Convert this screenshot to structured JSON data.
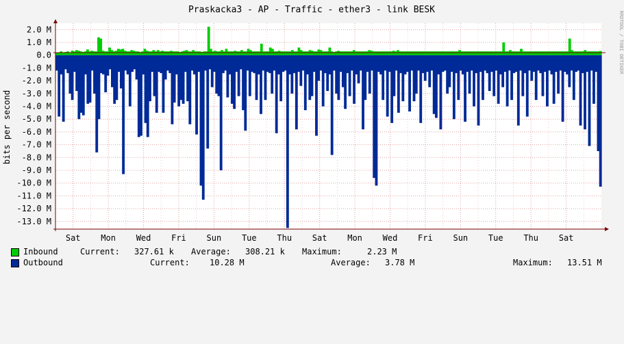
{
  "chart_data": {
    "type": "area",
    "title": "Praskacka3 - AP - Traffic - ether3 - link BESK",
    "ylabel": "bits per second",
    "xlabel": "",
    "credit": "RRDTOOL / TOBI OETIKER",
    "ylim": [
      -13.6,
      2.5
    ],
    "yticks": [
      "2.0 M",
      "1.0 M",
      "0.0",
      "-1.0 M",
      "-2.0 M",
      "-3.0 M",
      "-4.0 M",
      "-5.0 M",
      "-6.0 M",
      "-7.0 M",
      "-8.0 M",
      "-9.0 M",
      "-10.0 M",
      "-11.0 M",
      "-12.0 M",
      "-13.0 M"
    ],
    "ytick_values": [
      2,
      1,
      0,
      -1,
      -2,
      -3,
      -4,
      -5,
      -6,
      -7,
      -8,
      -9,
      -10,
      -11,
      -12,
      -13
    ],
    "xticks": [
      "Sat",
      "Mon",
      "Wed",
      "Fri",
      "Sun",
      "Tue",
      "Thu",
      "Sat",
      "Mon",
      "Wed",
      "Fri",
      "Sun",
      "Tue",
      "Thu",
      "Sat"
    ],
    "xtick_positions": [
      0.5,
      1.5,
      2.5,
      3.5,
      4.5,
      5.5,
      6.5,
      7.5,
      8.5,
      9.5,
      10.5,
      11.5,
      12.5,
      13.5,
      14.5
    ],
    "xlim": [
      0,
      15.5
    ],
    "grid": true,
    "series": [
      {
        "name": "Inbound",
        "color": "#00cc00",
        "values": [
          0.2,
          0.22,
          0.3,
          0.18,
          0.25,
          0.3,
          0.2,
          0.35,
          0.3,
          0.4,
          0.35,
          0.3,
          0.25,
          0.3,
          0.45,
          0.3,
          0.35,
          0.3,
          0.3,
          1.4,
          1.3,
          0.35,
          0.3,
          0.3,
          0.6,
          0.4,
          0.3,
          0.35,
          0.5,
          0.45,
          0.5,
          0.35,
          0.3,
          0.3,
          0.4,
          0.35,
          0.3,
          0.3,
          0.25,
          0.3,
          0.5,
          0.35,
          0.3,
          0.3,
          0.4,
          0.3,
          0.4,
          0.3,
          0.35,
          0.3,
          0.3,
          0.3,
          0.35,
          0.3,
          0.3,
          0.3,
          0.25,
          0.3,
          0.35,
          0.4,
          0.3,
          0.3,
          0.4,
          0.3,
          0.3,
          0.3,
          0.25,
          0.3,
          0.3,
          2.23,
          0.5,
          0.3,
          0.35,
          0.3,
          0.3,
          0.4,
          0.3,
          0.5,
          0.3,
          0.3,
          0.3,
          0.35,
          0.3,
          0.3,
          0.4,
          0.3,
          0.3,
          0.5,
          0.4,
          0.3,
          0.3,
          0.3,
          0.3,
          0.9,
          0.3,
          0.3,
          0.3,
          0.6,
          0.5,
          0.3,
          0.3,
          0.35,
          0.3,
          0.3,
          0.3,
          0.3,
          0.3,
          0.4,
          0.3,
          0.3,
          0.6,
          0.4,
          0.3,
          0.3,
          0.3,
          0.4,
          0.35,
          0.3,
          0.3,
          0.45,
          0.4,
          0.3,
          0.3,
          0.3,
          0.6,
          0.3,
          0.25,
          0.3,
          0.35,
          0.3,
          0.3,
          0.3,
          0.3,
          0.3,
          0.3,
          0.4,
          0.3,
          0.3,
          0.3,
          0.3,
          0.3,
          0.3,
          0.4,
          0.35,
          0.3,
          0.3,
          0.3,
          0.3,
          0.3,
          0.3,
          0.3,
          0.3,
          0.3,
          0.35,
          0.3,
          0.4,
          0.3,
          0.3,
          0.3,
          0.3,
          0.3,
          0.3,
          0.3,
          0.3,
          0.3,
          0.3,
          0.3,
          0.3,
          0.3,
          0.3,
          0.3,
          0.3,
          0.3,
          0.3,
          0.3,
          0.3,
          0.3,
          0.3,
          0.3,
          0.3,
          0.3,
          0.3,
          0.3,
          0.4,
          0.3,
          0.3,
          0.3,
          0.3,
          0.3,
          0.3,
          0.3,
          0.3,
          0.3,
          0.3,
          0.3,
          0.3,
          0.3,
          0.3,
          0.3,
          0.3,
          0.3,
          0.3,
          0.3,
          1.0,
          0.3,
          0.3,
          0.4,
          0.3,
          0.3,
          0.3,
          0.3,
          0.5,
          0.3,
          0.3,
          0.3,
          0.3,
          0.3,
          0.3,
          0.3,
          0.3,
          0.3,
          0.3,
          0.3,
          0.3,
          0.3,
          0.3,
          0.3,
          0.3,
          0.3,
          0.3,
          0.3,
          0.3,
          0.3,
          1.3,
          0.4,
          0.3,
          0.3,
          0.3,
          0.3,
          0.3,
          0.4,
          0.3,
          0.3,
          0.3,
          0.3,
          0.3,
          0.3,
          0.33
        ]
      },
      {
        "name": "Outbound",
        "color": "#002a97",
        "values": [
          -1.2,
          -4.8,
          -1.5,
          -5.2,
          -1.1,
          -1.4,
          -3.0,
          -3.5,
          -1.3,
          -2.8,
          -5.0,
          -4.5,
          -4.7,
          -1.5,
          -3.8,
          -3.7,
          -1.2,
          -3.0,
          -7.6,
          -5.0,
          -1.4,
          -1.5,
          -2.9,
          -1.6,
          -1.1,
          -2.5,
          -3.8,
          -3.5,
          -1.3,
          -2.6,
          -9.3,
          -1.2,
          -1.5,
          -4.0,
          -1.3,
          -1.1,
          -1.9,
          -6.4,
          -6.3,
          -1.5,
          -5.3,
          -6.4,
          -3.6,
          -1.3,
          -3.2,
          -4.5,
          -1.3,
          -1.4,
          -4.5,
          -1.9,
          -1.2,
          -1.4,
          -5.4,
          -3.7,
          -1.5,
          -4.0,
          -3.5,
          -3.8,
          -1.3,
          -3.6,
          -5.4,
          -1.2,
          -1.5,
          -6.2,
          -1.3,
          -10.2,
          -11.3,
          -1.2,
          -7.3,
          -1.1,
          -2.5,
          -1.3,
          -3.0,
          -3.2,
          -9.0,
          -1.4,
          -1.2,
          -3.3,
          -1.5,
          -3.8,
          -4.2,
          -1.3,
          -3.2,
          -1.1,
          -4.3,
          -5.9,
          -1.2,
          -3.2,
          -1.3,
          -1.4,
          -3.5,
          -1.5,
          -4.6,
          -1.2,
          -3.5,
          -1.3,
          -1.4,
          -3.0,
          -1.2,
          -6.1,
          -1.5,
          -3.6,
          -1.3,
          -1.2,
          -13.51,
          -1.5,
          -3.0,
          -1.4,
          -5.8,
          -1.3,
          -2.4,
          -1.2,
          -4.3,
          -1.5,
          -3.5,
          -3.2,
          -1.3,
          -6.3,
          -2.0,
          -1.2,
          -4.0,
          -1.4,
          -2.8,
          -1.5,
          -7.8,
          -1.2,
          -3.0,
          -3.5,
          -1.3,
          -2.5,
          -4.2,
          -1.4,
          -3.2,
          -1.2,
          -3.8,
          -1.5,
          -2.2,
          -1.2,
          -5.8,
          -3.5,
          -1.3,
          -3.0,
          -1.2,
          -9.6,
          -10.2,
          -1.3,
          -1.5,
          -3.5,
          -1.2,
          -4.8,
          -1.3,
          -5.3,
          -3.2,
          -1.2,
          -4.5,
          -1.4,
          -3.6,
          -1.5,
          -1.3,
          -4.4,
          -1.2,
          -3.6,
          -3.0,
          -1.2,
          -5.3,
          -1.4,
          -2.0,
          -1.3,
          -2.5,
          -1.2,
          -4.6,
          -4.9,
          -1.5,
          -5.8,
          -1.3,
          -1.2,
          -3.0,
          -2.5,
          -1.3,
          -5.0,
          -1.4,
          -3.5,
          -1.2,
          -1.5,
          -5.2,
          -1.3,
          -3.0,
          -1.2,
          -4.0,
          -1.4,
          -5.5,
          -1.3,
          -3.5,
          -1.2,
          -1.4,
          -2.8,
          -1.3,
          -3.2,
          -1.2,
          -3.8,
          -1.5,
          -2.5,
          -1.3,
          -4.0,
          -1.2,
          -3.5,
          -1.4,
          -1.3,
          -5.5,
          -1.2,
          -3.2,
          -1.4,
          -4.8,
          -1.2,
          -2.0,
          -1.3,
          -3.5,
          -1.2,
          -1.4,
          -3.2,
          -1.3,
          -4.0,
          -1.2,
          -1.5,
          -3.8,
          -1.3,
          -3.0,
          -1.2,
          -5.2,
          -1.3,
          -1.5,
          -2.5,
          -1.2,
          -3.5,
          -1.3,
          -1.2,
          -5.5,
          -1.4,
          -5.8,
          -1.3,
          -7.1,
          -1.2,
          -3.8,
          -1.3,
          -7.5,
          -10.28
        ]
      }
    ]
  },
  "legend": {
    "inbound": {
      "label": "Inbound",
      "current_label": "Current:",
      "current": "327.61 k",
      "average_label": "Average:",
      "average": "308.21 k",
      "maximum_label": "Maximum:",
      "maximum": "2.23 M",
      "color": "#00cc00"
    },
    "outbound": {
      "label": "Outbound",
      "current_label": "Current:",
      "current": "10.28 M",
      "average_label": "Average:",
      "average": "3.78 M",
      "maximum_label": "Maximum:",
      "maximum": "13.51 M",
      "color": "#002a97"
    }
  }
}
